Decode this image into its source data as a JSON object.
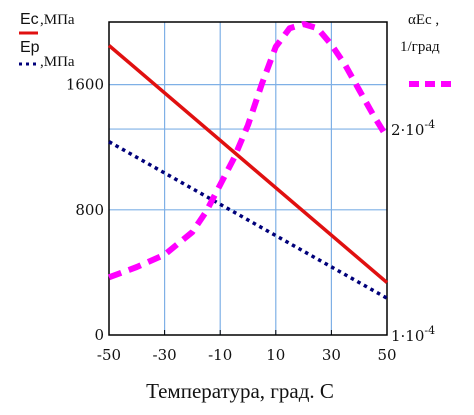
{
  "chart_data": {
    "type": "line",
    "x": {
      "label": "Температура, град. С",
      "ticks": [
        -50,
        -30,
        -10,
        10,
        30,
        50
      ],
      "tick_labels": [
        "-50",
        "-30",
        "-10",
        "10",
        "30",
        "50"
      ],
      "range": [
        -50,
        50
      ]
    },
    "y_left": {
      "ticks": [
        0,
        800,
        1600
      ],
      "tick_labels": [
        "0",
        "800",
        "1600"
      ],
      "range": [
        0,
        2000
      ]
    },
    "y_right": {
      "ticks": [
        0.0001,
        0.0002
      ],
      "tick_labels": [
        {
          "base": "1·10",
          "exp": "-4"
        },
        {
          "base": "2·10",
          "exp": "-4"
        }
      ],
      "range": [
        0.0001,
        0.000252
      ]
    },
    "grid": true,
    "legend_left": [
      {
        "line1": "Ec",
        "line2": ",МПа",
        "color": "#e01010",
        "style": "solid"
      },
      {
        "line1": "Ep",
        "line2": ",МПа",
        "color": "#00007a",
        "style": "dotted"
      }
    ],
    "legend_right": {
      "line1": "αEc ,",
      "line2": "1/град",
      "color": "#ff00ff",
      "style": "dashed"
    },
    "series": [
      {
        "name": "Ec",
        "axis": "left",
        "color": "#e01010",
        "style": "solid",
        "x": [
          -50,
          50
        ],
        "y": [
          1850,
          335
        ]
      },
      {
        "name": "Ep",
        "axis": "left",
        "color": "#00007a",
        "style": "dotted",
        "x": [
          -50,
          50
        ],
        "y": [
          1235,
          235
        ]
      },
      {
        "name": "αEc",
        "axis": "right",
        "color": "#ff00ff",
        "style": "dashed",
        "x": [
          -50,
          -40,
          -30,
          -20,
          -15,
          -10,
          -5,
          0,
          5,
          10,
          15,
          20,
          25,
          30,
          35,
          40,
          45,
          50
        ],
        "y": [
          0.000128,
          0.000133,
          0.000139,
          0.00015,
          0.00016,
          0.000173,
          0.000186,
          0.000202,
          0.000222,
          0.00024,
          0.000249,
          0.000251,
          0.000249,
          0.000241,
          0.000231,
          0.000219,
          0.000207,
          0.000196
        ]
      }
    ]
  }
}
